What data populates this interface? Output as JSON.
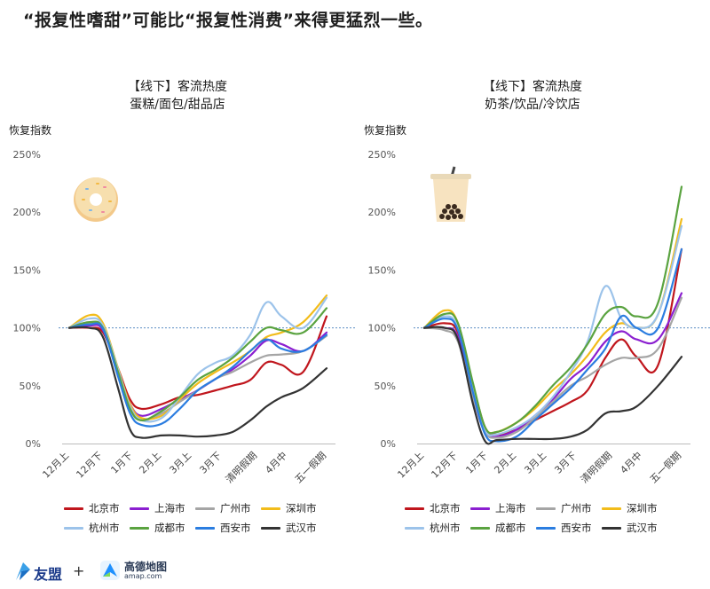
{
  "headline": "“报复性嗜甜”可能比“报复性消费”来得更猛烈一些。",
  "footer": {
    "brand1": "友盟",
    "plus": "+",
    "brand2": "高德地图",
    "brand2_url": "amap.com"
  },
  "colors": {
    "北京市": "#c0161d",
    "上海市": "#8b1fd0",
    "广州市": "#a5a5a5",
    "深圳市": "#f2bc1a",
    "杭州市": "#9cc3ea",
    "成都市": "#5aa340",
    "西安市": "#2b7de0",
    "武汉市": "#333333",
    "baseline": "#5b8ec2"
  },
  "chart_data": [
    {
      "type": "line",
      "title": "【线下】客流热度",
      "subtitle": "蛋糕/面包/甜品店",
      "ylabel": "恢复指数",
      "categories": [
        "12月上",
        "12月下",
        "1月下",
        "2月上",
        "3月上",
        "3月下",
        "清明假期",
        "4月中",
        "五一假期"
      ],
      "yticks": [
        "0%",
        "50%",
        "100%",
        "150%",
        "200%",
        "250%"
      ],
      "ylim": [
        0,
        250
      ],
      "icon": "donut-icon",
      "series": [
        {
          "name": "北京市",
          "x": [
            0,
            0.6,
            1,
            1.5,
            1.9,
            2.3,
            3,
            3.6,
            4.2,
            4.8,
            5.3,
            5.8,
            6.3,
            6.8,
            7.4,
            8
          ],
          "values": [
            100,
            100,
            96,
            65,
            38,
            30,
            34,
            40,
            42,
            46,
            50,
            55,
            70,
            68,
            62,
            110
          ]
        },
        {
          "name": "上海市",
          "x": [
            0,
            0.6,
            1,
            1.5,
            1.9,
            2.3,
            3,
            3.6,
            4.2,
            4.8,
            5.3,
            5.8,
            6.3,
            6.8,
            7.4,
            8
          ],
          "values": [
            100,
            102,
            98,
            62,
            34,
            24,
            30,
            38,
            46,
            56,
            64,
            76,
            89,
            86,
            80,
            96
          ]
        },
        {
          "name": "广州市",
          "x": [
            0,
            0.6,
            1,
            1.5,
            1.9,
            2.3,
            3,
            3.6,
            4.2,
            4.8,
            5.3,
            5.8,
            6.3,
            6.8,
            7.4,
            8
          ],
          "values": [
            100,
            104,
            100,
            60,
            30,
            20,
            26,
            36,
            46,
            56,
            62,
            70,
            76,
            77,
            80,
            93
          ]
        },
        {
          "name": "深圳市",
          "x": [
            0,
            0.6,
            1,
            1.5,
            1.9,
            2.3,
            3,
            3.6,
            4.2,
            4.8,
            5.3,
            5.8,
            6.3,
            6.8,
            7.4,
            8
          ],
          "values": [
            100,
            111,
            104,
            65,
            34,
            22,
            24,
            38,
            52,
            62,
            70,
            80,
            92,
            96,
            105,
            128
          ]
        },
        {
          "name": "杭州市",
          "x": [
            0,
            0.6,
            1,
            1.5,
            1.9,
            2.3,
            3,
            3.6,
            4.2,
            4.8,
            5.3,
            5.8,
            6.3,
            6.8,
            7.4,
            8
          ],
          "values": [
            100,
            108,
            102,
            64,
            32,
            20,
            22,
            40,
            60,
            70,
            76,
            94,
            122,
            110,
            100,
            126
          ]
        },
        {
          "name": "成都市",
          "x": [
            0,
            0.6,
            1,
            1.5,
            1.9,
            2.3,
            3,
            3.6,
            4.2,
            4.8,
            5.3,
            5.8,
            6.3,
            6.8,
            7.4,
            8
          ],
          "values": [
            100,
            105,
            100,
            62,
            30,
            20,
            28,
            40,
            55,
            64,
            74,
            88,
            100,
            98,
            96,
            117
          ]
        },
        {
          "name": "西安市",
          "x": [
            0,
            0.6,
            1,
            1.5,
            1.9,
            2.3,
            3,
            3.6,
            4.2,
            4.8,
            5.3,
            5.8,
            6.3,
            6.8,
            7.4,
            8
          ],
          "values": [
            100,
            103,
            99,
            58,
            26,
            16,
            17,
            30,
            46,
            56,
            66,
            80,
            90,
            82,
            80,
            94
          ]
        },
        {
          "name": "武汉市",
          "x": [
            0,
            0.6,
            1,
            1.5,
            1.9,
            2.3,
            3,
            3.6,
            4.2,
            4.8,
            5.3,
            5.8,
            6.3,
            6.8,
            7.4,
            8
          ],
          "values": [
            100,
            100,
            92,
            48,
            12,
            5,
            7,
            7,
            6,
            7,
            10,
            20,
            32,
            40,
            48,
            65
          ]
        }
      ]
    },
    {
      "type": "line",
      "title": "【线下】客流热度",
      "subtitle": "奶茶/饮品/冷饮店",
      "ylabel": "恢复指数",
      "categories": [
        "12月上",
        "12月下",
        "1月下",
        "2月上",
        "3月上",
        "3月下",
        "清明假期",
        "4月中",
        "五一假期"
      ],
      "yticks": [
        "0%",
        "50%",
        "100%",
        "150%",
        "200%",
        "250%"
      ],
      "ylim": [
        0,
        250
      ],
      "icon": "bubble-tea-icon",
      "series": [
        {
          "name": "北京市",
          "x": [
            0,
            0.6,
            1,
            1.5,
            1.9,
            2.3,
            3,
            3.6,
            4.2,
            4.8,
            5.3,
            5.8,
            6.3,
            6.8,
            7.4,
            8
          ],
          "values": [
            100,
            104,
            96,
            50,
            14,
            8,
            12,
            20,
            28,
            36,
            46,
            74,
            90,
            75,
            68,
            168
          ]
        },
        {
          "name": "上海市",
          "x": [
            0,
            0.6,
            1,
            1.5,
            1.9,
            2.3,
            3,
            3.6,
            4.2,
            4.8,
            5.3,
            5.8,
            6.3,
            6.8,
            7.4,
            8
          ],
          "values": [
            100,
            100,
            92,
            40,
            10,
            6,
            12,
            24,
            38,
            56,
            68,
            88,
            97,
            90,
            90,
            130
          ]
        },
        {
          "name": "广州市",
          "x": [
            0,
            0.6,
            1,
            1.5,
            1.9,
            2.3,
            3,
            3.6,
            4.2,
            4.8,
            5.3,
            5.8,
            6.3,
            6.8,
            7.4,
            8
          ],
          "values": [
            100,
            98,
            88,
            40,
            10,
            5,
            10,
            22,
            36,
            50,
            58,
            68,
            74,
            74,
            82,
            126
          ]
        },
        {
          "name": "深圳市",
          "x": [
            0,
            0.6,
            1,
            1.5,
            1.9,
            2.3,
            3,
            3.6,
            4.2,
            4.8,
            5.3,
            5.8,
            6.3,
            6.8,
            7.4,
            8
          ],
          "values": [
            100,
            115,
            104,
            50,
            14,
            10,
            18,
            30,
            46,
            60,
            76,
            96,
            104,
            100,
            112,
            194
          ]
        },
        {
          "name": "杭州市",
          "x": [
            0,
            0.6,
            1,
            1.5,
            1.9,
            2.3,
            3,
            3.6,
            4.2,
            4.8,
            5.3,
            5.8,
            6.3,
            6.8,
            7.4,
            8
          ],
          "values": [
            100,
            110,
            100,
            50,
            12,
            8,
            14,
            24,
            40,
            62,
            88,
            136,
            108,
            100,
            112,
            188
          ]
        },
        {
          "name": "成都市",
          "x": [
            0,
            0.6,
            1,
            1.5,
            1.9,
            2.3,
            3,
            3.6,
            4.2,
            4.8,
            5.3,
            5.8,
            6.3,
            6.8,
            7.4,
            8
          ],
          "values": [
            100,
            112,
            104,
            52,
            14,
            10,
            18,
            32,
            50,
            66,
            86,
            112,
            118,
            110,
            122,
            222
          ]
        },
        {
          "name": "西安市",
          "x": [
            0,
            0.6,
            1,
            1.5,
            1.9,
            2.3,
            3,
            3.6,
            4.2,
            4.8,
            5.3,
            5.8,
            6.3,
            6.8,
            7.4,
            8
          ],
          "values": [
            100,
            108,
            98,
            44,
            8,
            2,
            6,
            20,
            34,
            48,
            64,
            82,
            110,
            100,
            100,
            168
          ]
        },
        {
          "name": "武汉市",
          "x": [
            0,
            0.6,
            1,
            1.5,
            1.9,
            2.3,
            3,
            3.6,
            4.2,
            4.8,
            5.3,
            5.8,
            6.3,
            6.8,
            7.4,
            8
          ],
          "values": [
            100,
            100,
            90,
            34,
            2,
            3,
            4,
            4,
            4,
            6,
            12,
            26,
            28,
            32,
            50,
            75
          ]
        }
      ]
    }
  ],
  "legend": [
    "北京市",
    "上海市",
    "广州市",
    "深圳市",
    "杭州市",
    "成都市",
    "西安市",
    "武汉市"
  ]
}
